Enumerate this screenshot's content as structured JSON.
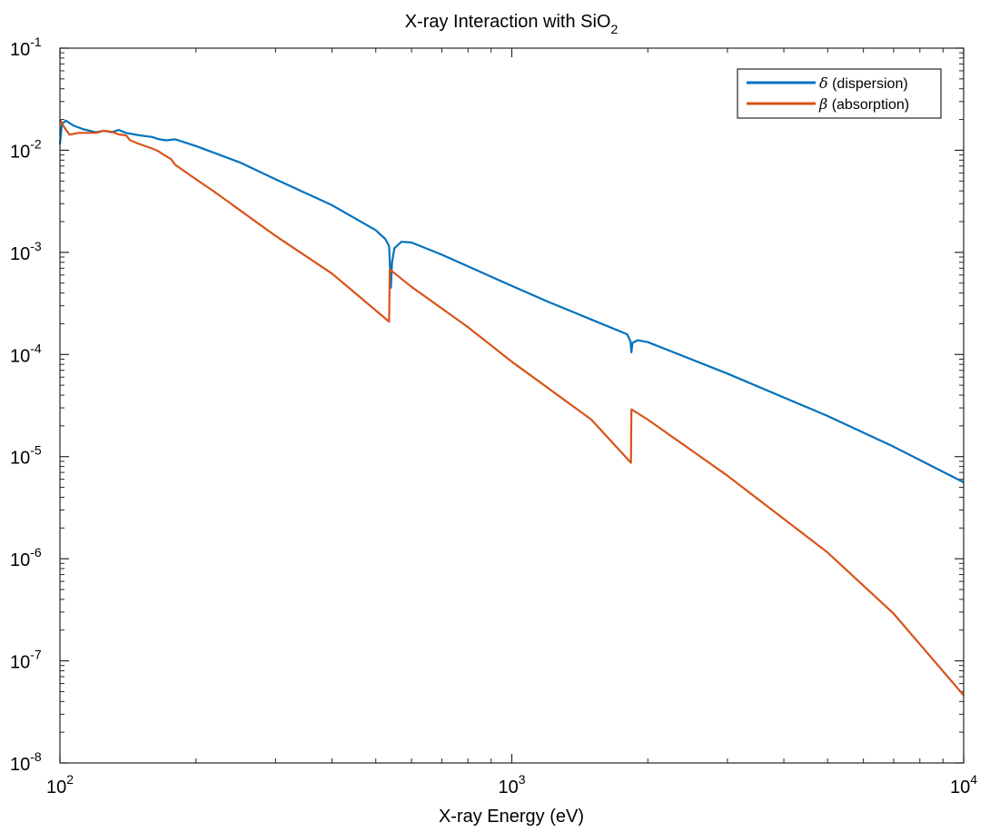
{
  "chart_data": {
    "type": "line",
    "title": "X-ray Interaction with SiO",
    "title_subscript": "2",
    "xlabel": "X-ray Energy (eV)",
    "ylabel": "",
    "xscale": "log",
    "yscale": "log",
    "xlim": [
      100,
      10000
    ],
    "ylim": [
      1e-08,
      0.1
    ],
    "x_tick_labels": [
      {
        "value": 100,
        "base": "10",
        "exp": "2"
      },
      {
        "value": 1000,
        "base": "10",
        "exp": "3"
      },
      {
        "value": 10000,
        "base": "10",
        "exp": "4"
      }
    ],
    "y_tick_labels": [
      {
        "value": 1e-08,
        "base": "10",
        "exp": "-8"
      },
      {
        "value": 1e-07,
        "base": "10",
        "exp": "-7"
      },
      {
        "value": 1e-06,
        "base": "10",
        "exp": "-6"
      },
      {
        "value": 1e-05,
        "base": "10",
        "exp": "-5"
      },
      {
        "value": 0.0001,
        "base": "10",
        "exp": "-4"
      },
      {
        "value": 0.001,
        "base": "10",
        "exp": "-3"
      },
      {
        "value": 0.01,
        "base": "10",
        "exp": "-2"
      },
      {
        "value": 0.1,
        "base": "10",
        "exp": "-1"
      }
    ],
    "grid": false,
    "legend_position": "top-right",
    "series": [
      {
        "name": "δ (dispersion)",
        "symbol": "δ",
        "label": " (dispersion)",
        "color": "#0072BD",
        "points": [
          [
            100,
            0.0115
          ],
          [
            101,
            0.018
          ],
          [
            103,
            0.0195
          ],
          [
            107,
            0.0175
          ],
          [
            113,
            0.016
          ],
          [
            120,
            0.015
          ],
          [
            125,
            0.0155
          ],
          [
            130,
            0.015
          ],
          [
            135,
            0.0158
          ],
          [
            140,
            0.0148
          ],
          [
            150,
            0.014
          ],
          [
            160,
            0.0135
          ],
          [
            166,
            0.0128
          ],
          [
            172,
            0.0125
          ],
          [
            180,
            0.0128
          ],
          [
            185,
            0.0123
          ],
          [
            200,
            0.011
          ],
          [
            250,
            0.0076
          ],
          [
            300,
            0.0052
          ],
          [
            400,
            0.0029
          ],
          [
            500,
            0.00165
          ],
          [
            525,
            0.00135
          ],
          [
            535,
            0.00115
          ],
          [
            540,
            0.00045
          ],
          [
            543,
            0.0008
          ],
          [
            550,
            0.0011
          ],
          [
            570,
            0.00127
          ],
          [
            600,
            0.00125
          ],
          [
            700,
            0.00095
          ],
          [
            800,
            0.00073
          ],
          [
            1000,
            0.00047
          ],
          [
            1200,
            0.00033
          ],
          [
            1500,
            0.00022
          ],
          [
            1800,
            0.000158
          ],
          [
            1830,
            0.000135
          ],
          [
            1840,
            0.000105
          ],
          [
            1850,
            0.00013
          ],
          [
            1900,
            0.000138
          ],
          [
            2000,
            0.000132
          ],
          [
            3000,
            6.5e-05
          ],
          [
            5000,
            2.5e-05
          ],
          [
            7000,
            1.25e-05
          ],
          [
            10000,
            5.6e-06
          ]
        ]
      },
      {
        "name": "β (absorption)",
        "symbol": "β",
        "label": " (absorption)",
        "color": "#D95319",
        "points": [
          [
            100,
            0.02
          ],
          [
            102,
            0.017
          ],
          [
            105,
            0.0142
          ],
          [
            110,
            0.0148
          ],
          [
            120,
            0.0148
          ],
          [
            125,
            0.0155
          ],
          [
            130,
            0.0152
          ],
          [
            135,
            0.0143
          ],
          [
            140,
            0.014
          ],
          [
            143,
            0.0125
          ],
          [
            150,
            0.0115
          ],
          [
            160,
            0.0104
          ],
          [
            165,
            0.0098
          ],
          [
            170,
            0.009
          ],
          [
            176,
            0.0082
          ],
          [
            180,
            0.0072
          ],
          [
            200,
            0.0052
          ],
          [
            220,
            0.0039
          ],
          [
            300,
            0.00145
          ],
          [
            400,
            0.00062
          ],
          [
            535,
            0.00021
          ],
          [
            537,
            0.00068
          ],
          [
            600,
            0.00046
          ],
          [
            800,
            0.000185
          ],
          [
            1000,
            8.5e-05
          ],
          [
            1500,
            2.3e-05
          ],
          [
            1835,
            8.7e-06
          ],
          [
            1840,
            2.9e-05
          ],
          [
            2000,
            2.3e-05
          ],
          [
            3000,
            6.5e-06
          ],
          [
            5000,
            1.15e-06
          ],
          [
            7000,
            2.9e-07
          ],
          [
            10000,
            4.6e-08
          ]
        ]
      }
    ]
  }
}
